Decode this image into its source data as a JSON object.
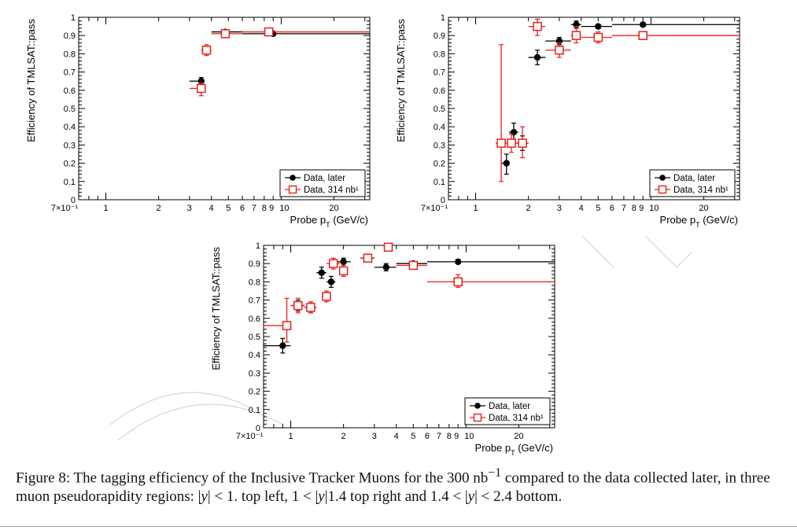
{
  "caption": {
    "lead": "Figure 8: The tagging efficiency of the Inclusive Tracker Muons for the 300 nb",
    "sup": "−1",
    "tail": " compared to the data collected later, in three muon pseudorapidity regions: |",
    "tail2": "| < 1. top left, 1 < |",
    "tail3": "|1.4 top right and 1.4 < |",
    "tail4": "| < 2.4 bottom.",
    "var": "y"
  },
  "chart_data": [
    {
      "type": "scatter",
      "id": "top-left",
      "title": "",
      "xlabel": "Probe p_T (GeV/c)",
      "ylabel": "Efficiency of TMLSAT::pass",
      "xscale": "log",
      "xlim": [
        0.7,
        32
      ],
      "ylim": [
        0,
        1
      ],
      "xtick_labels": [
        "7×10⁻¹",
        "1",
        "2",
        "3",
        "4",
        "5",
        "6",
        "7",
        "8",
        "9",
        "10",
        "20"
      ],
      "ytick_labels": [
        "0",
        "0.1",
        "0.2",
        "0.3",
        "0.4",
        "0.5",
        "0.6",
        "0.7",
        "0.8",
        "0.9",
        "1"
      ],
      "legend": {
        "placement": "bottom-right",
        "entries": [
          "Data, later",
          "Data, 314 nb¹"
        ]
      },
      "series": [
        {
          "name": "Data, later",
          "marker": "filled-circle",
          "color": "#000000",
          "points": [
            {
              "x": 3.5,
              "xlo": 3.0,
              "xhi": 3.5,
              "y": 0.65,
              "ylo": 0.63,
              "yhi": 0.67
            },
            {
              "x": 3.75,
              "xlo": 3.5,
              "xhi": 4.0,
              "y": 0.82,
              "ylo": 0.8,
              "yhi": 0.84
            },
            {
              "x": 4.8,
              "xlo": 4.0,
              "xhi": 6.0,
              "y": 0.92,
              "ylo": 0.91,
              "yhi": 0.93
            },
            {
              "x": 9.0,
              "xlo": 6.0,
              "xhi": 32.0,
              "y": 0.91,
              "ylo": 0.9,
              "yhi": 0.92
            }
          ]
        },
        {
          "name": "Data, 314 nb¹",
          "marker": "open-square",
          "color": "#e8201c",
          "points": [
            {
              "x": 3.5,
              "xlo": 3.0,
              "xhi": 3.5,
              "y": 0.61,
              "ylo": 0.57,
              "yhi": 0.64
            },
            {
              "x": 3.75,
              "xlo": 3.5,
              "xhi": 4.0,
              "y": 0.82,
              "ylo": 0.79,
              "yhi": 0.85
            },
            {
              "x": 4.8,
              "xlo": 4.0,
              "xhi": 6.0,
              "y": 0.91,
              "ylo": 0.9,
              "yhi": 0.92
            },
            {
              "x": 8.5,
              "xlo": 6.0,
              "xhi": 32.0,
              "y": 0.92,
              "ylo": 0.91,
              "yhi": 0.93
            }
          ]
        }
      ]
    },
    {
      "type": "scatter",
      "id": "top-right",
      "title": "",
      "xlabel": "Probe p_T (GeV/c)",
      "ylabel": "Efficiency of TMLSAT::pass",
      "xscale": "log",
      "xlim": [
        0.7,
        32
      ],
      "ylim": [
        0,
        1
      ],
      "xtick_labels": [
        "7×10⁻¹",
        "1",
        "2",
        "3",
        "4",
        "5",
        "6",
        "7",
        "8",
        "9",
        "10",
        "20"
      ],
      "ytick_labels": [
        "0",
        "0.1",
        "0.2",
        "0.3",
        "0.4",
        "0.5",
        "0.6",
        "0.7",
        "0.8",
        "0.9",
        "1"
      ],
      "legend": {
        "placement": "bottom-right",
        "entries": [
          "Data, later",
          "Data, 314 nb¹"
        ]
      },
      "series": [
        {
          "name": "Data, later",
          "marker": "filled-circle",
          "color": "#000000",
          "points": [
            {
              "x": 1.5,
              "xlo": 1.4,
              "xhi": 1.5,
              "y": 0.2,
              "ylo": 0.14,
              "yhi": 0.25
            },
            {
              "x": 1.65,
              "xlo": 1.55,
              "xhi": 1.75,
              "y": 0.37,
              "ylo": 0.33,
              "yhi": 0.42
            },
            {
              "x": 1.85,
              "xlo": 1.75,
              "xhi": 2.0,
              "y": 0.31,
              "ylo": 0.27,
              "yhi": 0.35
            },
            {
              "x": 2.25,
              "xlo": 2.0,
              "xhi": 2.5,
              "y": 0.78,
              "ylo": 0.74,
              "yhi": 0.82
            },
            {
              "x": 3.0,
              "xlo": 2.5,
              "xhi": 3.5,
              "y": 0.87,
              "ylo": 0.85,
              "yhi": 0.89
            },
            {
              "x": 3.75,
              "xlo": 3.5,
              "xhi": 4.0,
              "y": 0.96,
              "ylo": 0.94,
              "yhi": 0.98
            },
            {
              "x": 5.0,
              "xlo": 4.0,
              "xhi": 6.0,
              "y": 0.95,
              "ylo": 0.94,
              "yhi": 0.96
            },
            {
              "x": 9.0,
              "xlo": 6.0,
              "xhi": 32.0,
              "y": 0.96,
              "ylo": 0.95,
              "yhi": 0.97
            }
          ]
        },
        {
          "name": "Data, 314 nb¹",
          "marker": "open-square",
          "color": "#e8201c",
          "points": [
            {
              "x": 1.4,
              "xlo": 1.3,
              "xhi": 1.5,
              "y": 0.31,
              "ylo": 0.1,
              "yhi": 0.85
            },
            {
              "x": 1.6,
              "xlo": 1.5,
              "xhi": 1.7,
              "y": 0.31,
              "ylo": 0.26,
              "yhi": 0.36
            },
            {
              "x": 1.85,
              "xlo": 1.7,
              "xhi": 2.0,
              "y": 0.31,
              "ylo": 0.23,
              "yhi": 0.4
            },
            {
              "x": 2.25,
              "xlo": 2.0,
              "xhi": 2.5,
              "y": 0.95,
              "ylo": 0.9,
              "yhi": 0.99
            },
            {
              "x": 3.0,
              "xlo": 2.5,
              "xhi": 3.5,
              "y": 0.82,
              "ylo": 0.78,
              "yhi": 0.86
            },
            {
              "x": 3.75,
              "xlo": 3.5,
              "xhi": 4.0,
              "y": 0.9,
              "ylo": 0.86,
              "yhi": 0.95
            },
            {
              "x": 5.0,
              "xlo": 4.0,
              "xhi": 6.0,
              "y": 0.89,
              "ylo": 0.86,
              "yhi": 0.92
            },
            {
              "x": 9.0,
              "xlo": 6.0,
              "xhi": 32.0,
              "y": 0.9,
              "ylo": 0.88,
              "yhi": 0.92
            }
          ]
        }
      ]
    },
    {
      "type": "scatter",
      "id": "bottom",
      "title": "",
      "xlabel": "Probe p_T (GeV/c)",
      "ylabel": "Efficiency of TMLSAT::pass",
      "xscale": "log",
      "xlim": [
        0.7,
        32
      ],
      "ylim": [
        0,
        1
      ],
      "xtick_labels": [
        "7×10⁻¹",
        "1",
        "2",
        "3",
        "4",
        "5",
        "6",
        "7",
        "8",
        "9",
        "10",
        "20"
      ],
      "ytick_labels": [
        "0",
        "0.1",
        "0.2",
        "0.3",
        "0.4",
        "0.5",
        "0.6",
        "0.7",
        "0.8",
        "0.9",
        "1"
      ],
      "legend": {
        "placement": "bottom-right",
        "entries": [
          "Data, later",
          "Data, 314 nb¹"
        ]
      },
      "series": [
        {
          "name": "Data, later",
          "marker": "filled-circle",
          "color": "#000000",
          "points": [
            {
              "x": 0.9,
              "xlo": 0.7,
              "xhi": 1.0,
              "y": 0.45,
              "ylo": 0.41,
              "yhi": 0.49
            },
            {
              "x": 1.1,
              "xlo": 1.0,
              "xhi": 1.2,
              "y": 0.67,
              "ylo": 0.64,
              "yhi": 0.7
            },
            {
              "x": 1.3,
              "xlo": 1.2,
              "xhi": 1.4,
              "y": 0.66,
              "ylo": 0.63,
              "yhi": 0.69
            },
            {
              "x": 1.5,
              "xlo": 1.4,
              "xhi": 1.6,
              "y": 0.85,
              "ylo": 0.82,
              "yhi": 0.88
            },
            {
              "x": 1.7,
              "xlo": 1.6,
              "xhi": 1.8,
              "y": 0.8,
              "ylo": 0.77,
              "yhi": 0.83
            },
            {
              "x": 2.0,
              "xlo": 1.8,
              "xhi": 2.2,
              "y": 0.91,
              "ylo": 0.88,
              "yhi": 0.93
            },
            {
              "x": 2.75,
              "xlo": 2.5,
              "xhi": 3.0,
              "y": 0.93,
              "ylo": 0.91,
              "yhi": 0.95
            },
            {
              "x": 3.5,
              "xlo": 3.0,
              "xhi": 4.0,
              "y": 0.88,
              "ylo": 0.86,
              "yhi": 0.9
            },
            {
              "x": 5.0,
              "xlo": 4.0,
              "xhi": 6.0,
              "y": 0.9,
              "ylo": 0.89,
              "yhi": 0.91
            },
            {
              "x": 9.0,
              "xlo": 6.0,
              "xhi": 32.0,
              "y": 0.91,
              "ylo": 0.9,
              "yhi": 0.92
            }
          ]
        },
        {
          "name": "Data, 314 nb¹",
          "marker": "open-square",
          "color": "#e8201c",
          "points": [
            {
              "x": 0.95,
              "xlo": 0.7,
              "xhi": 1.0,
              "y": 0.56,
              "ylo": 0.47,
              "yhi": 0.71
            },
            {
              "x": 1.1,
              "xlo": 1.0,
              "xhi": 1.2,
              "y": 0.67,
              "ylo": 0.63,
              "yhi": 0.71
            },
            {
              "x": 1.3,
              "xlo": 1.2,
              "xhi": 1.4,
              "y": 0.66,
              "ylo": 0.63,
              "yhi": 0.69
            },
            {
              "x": 1.6,
              "xlo": 1.5,
              "xhi": 1.7,
              "y": 0.72,
              "ylo": 0.69,
              "yhi": 0.75
            },
            {
              "x": 1.75,
              "xlo": 1.6,
              "xhi": 1.9,
              "y": 0.9,
              "ylo": 0.87,
              "yhi": 0.93
            },
            {
              "x": 2.0,
              "xlo": 1.9,
              "xhi": 2.1,
              "y": 0.86,
              "ylo": 0.83,
              "yhi": 0.89
            },
            {
              "x": 2.75,
              "xlo": 2.5,
              "xhi": 3.0,
              "y": 0.93,
              "ylo": 0.91,
              "yhi": 0.95
            },
            {
              "x": 3.6,
              "xlo": 3.4,
              "xhi": 3.8,
              "y": 0.99,
              "ylo": 0.97,
              "yhi": 1.0
            },
            {
              "x": 5.0,
              "xlo": 4.0,
              "xhi": 6.0,
              "y": 0.89,
              "ylo": 0.87,
              "yhi": 0.91
            },
            {
              "x": 9.0,
              "xlo": 6.0,
              "xhi": 32.0,
              "y": 0.8,
              "ylo": 0.77,
              "yhi": 0.84
            }
          ]
        }
      ]
    }
  ]
}
